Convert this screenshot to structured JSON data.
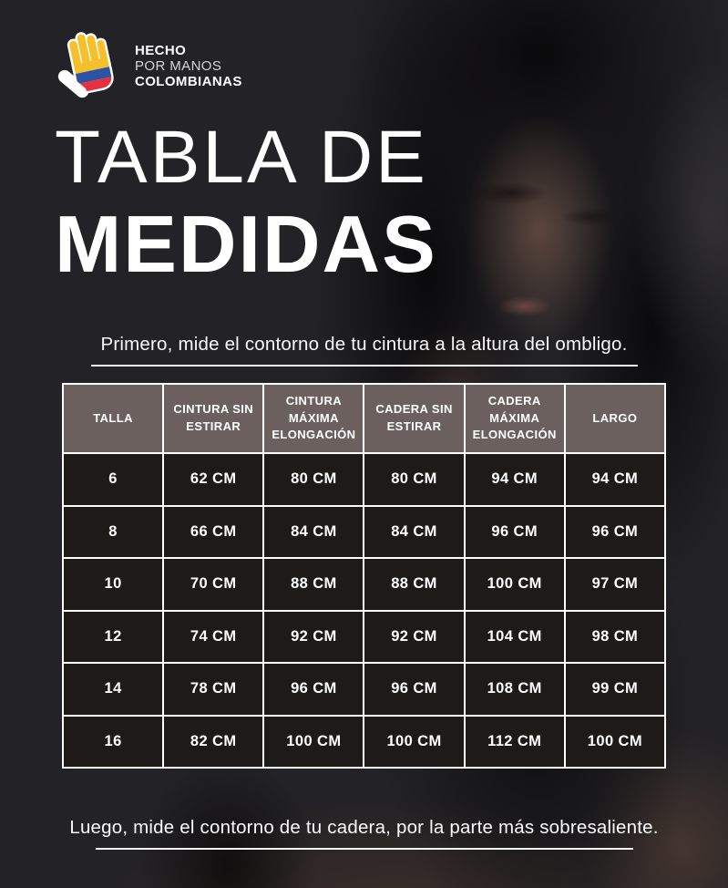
{
  "colors": {
    "bg": "#232226",
    "header_bg": "#6B605E",
    "cell_bg": "#1E1A18",
    "table_border": "#FFFFFF",
    "text": "#FFFFFF",
    "logo_muted": "#D6D4D4",
    "flag_yellow": "#F4C02C",
    "flag_blue": "#2F53A3",
    "flag_red": "#E7303B"
  },
  "logo": {
    "line1": "HECHO",
    "line2": "POR MANOS",
    "line3": "COLOMBIANAS",
    "icon": "hand-colombian-flag-icon"
  },
  "title": {
    "line1": "TABLA DE",
    "line2": "MEDIDAS"
  },
  "instructions": {
    "top": "Primero, mide  el contorno de tu cintura a la altura del ombligo.",
    "bottom": "Luego, mide el contorno de tu cadera, por la parte más sobresaliente."
  },
  "table": {
    "headers": [
      "TALLA",
      "CINTURA SIN ESTIRAR",
      "CINTURA MÁXIMA ELONGACIÓN",
      "CADERA SIN ESTIRAR",
      "CADERA MÁXIMA ELONGACIÓN",
      "LARGO"
    ],
    "rows": [
      [
        "6",
        "62 CM",
        "80 CM",
        "80 CM",
        "94 CM",
        "94 CM"
      ],
      [
        "8",
        "66 CM",
        "84 CM",
        "84 CM",
        "96 CM",
        "96 CM"
      ],
      [
        "10",
        "70 CM",
        "88 CM",
        "88 CM",
        "100 CM",
        "97 CM"
      ],
      [
        "12",
        "74 CM",
        "92 CM",
        "92 CM",
        "104 CM",
        "98 CM"
      ],
      [
        "14",
        "78 CM",
        "96 CM",
        "96 CM",
        "108 CM",
        "99 CM"
      ],
      [
        "16",
        "82 CM",
        "100 CM",
        "100 CM",
        "112 CM",
        "100 CM"
      ]
    ]
  },
  "chart_data": {
    "type": "table",
    "title": "TABLA DE MEDIDAS",
    "categories": [
      "TALLA",
      "CINTURA SIN ESTIRAR",
      "CINTURA MÁXIMA ELONGACIÓN",
      "CADERA SIN ESTIRAR",
      "CADERA MÁXIMA ELONGACIÓN",
      "LARGO"
    ],
    "series": [
      {
        "name": "6",
        "values": [
          "62 CM",
          "80 CM",
          "80 CM",
          "94 CM",
          "94 CM"
        ]
      },
      {
        "name": "8",
        "values": [
          "66 CM",
          "84 CM",
          "84 CM",
          "96 CM",
          "96 CM"
        ]
      },
      {
        "name": "10",
        "values": [
          "70 CM",
          "88 CM",
          "88 CM",
          "100 CM",
          "97 CM"
        ]
      },
      {
        "name": "12",
        "values": [
          "74 CM",
          "92 CM",
          "92 CM",
          "104 CM",
          "98 CM"
        ]
      },
      {
        "name": "14",
        "values": [
          "78 CM",
          "96 CM",
          "96 CM",
          "108 CM",
          "99 CM"
        ]
      },
      {
        "name": "16",
        "values": [
          "82 CM",
          "100 CM",
          "100 CM",
          "112 CM",
          "100 CM"
        ]
      }
    ]
  }
}
